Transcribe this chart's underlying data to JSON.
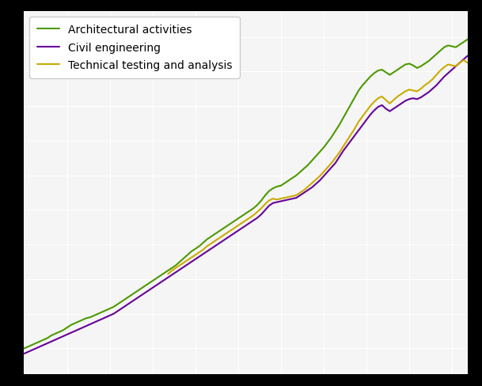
{
  "series": {
    "Architectural activities": {
      "color": "#4d9900",
      "linewidth": 1.5,
      "values": [
        100.0,
        101.0,
        102.0,
        103.0,
        104.0,
        105.0,
        106.0,
        107.5,
        108.5,
        109.5,
        110.5,
        112.0,
        113.5,
        114.5,
        115.5,
        116.5,
        117.5,
        118.0,
        119.0,
        120.0,
        121.0,
        122.0,
        123.0,
        124.0,
        125.5,
        127.0,
        128.5,
        130.0,
        131.5,
        133.0,
        134.5,
        136.0,
        137.5,
        139.0,
        140.5,
        142.0,
        143.5,
        145.0,
        146.5,
        148.0,
        150.0,
        152.0,
        154.0,
        156.0,
        157.5,
        159.0,
        161.0,
        163.0,
        164.5,
        166.0,
        167.5,
        169.0,
        170.5,
        172.0,
        173.5,
        175.0,
        176.5,
        178.0,
        179.5,
        181.0,
        183.0,
        185.5,
        188.5,
        191.0,
        192.5,
        193.5,
        194.0,
        195.5,
        197.0,
        198.5,
        200.0,
        202.0,
        204.0,
        206.0,
        208.5,
        211.0,
        213.5,
        216.0,
        219.0,
        222.0,
        225.5,
        229.0,
        233.0,
        237.0,
        241.0,
        245.0,
        249.0,
        252.0,
        254.5,
        257.0,
        259.0,
        260.5,
        261.0,
        259.5,
        258.0,
        259.5,
        261.0,
        262.5,
        264.0,
        264.5,
        263.5,
        262.0,
        263.0,
        264.5,
        266.0,
        268.0,
        270.0,
        272.0,
        274.0,
        275.0,
        274.5,
        274.0,
        275.5,
        277.0,
        278.5
      ]
    },
    "Civil engineering": {
      "color": "#660099",
      "linewidth": 1.5,
      "values": [
        97.0,
        98.0,
        99.0,
        100.0,
        101.0,
        102.0,
        103.0,
        104.0,
        105.0,
        106.0,
        107.0,
        108.0,
        109.0,
        110.0,
        111.0,
        112.0,
        113.0,
        114.0,
        115.0,
        116.0,
        117.0,
        118.0,
        119.0,
        120.0,
        121.5,
        123.0,
        124.5,
        126.0,
        127.5,
        129.0,
        130.5,
        132.0,
        133.5,
        135.0,
        136.5,
        138.0,
        139.5,
        141.0,
        142.5,
        144.0,
        145.5,
        147.0,
        148.5,
        150.0,
        151.5,
        153.0,
        154.5,
        156.0,
        157.5,
        159.0,
        160.5,
        162.0,
        163.5,
        165.0,
        166.5,
        168.0,
        169.5,
        171.0,
        172.5,
        174.0,
        175.5,
        177.5,
        180.0,
        182.5,
        184.0,
        184.5,
        185.0,
        185.5,
        186.0,
        186.5,
        187.0,
        188.5,
        190.0,
        191.5,
        193.0,
        195.0,
        197.0,
        199.5,
        202.0,
        204.5,
        207.0,
        210.5,
        214.0,
        217.0,
        220.0,
        223.0,
        226.0,
        229.0,
        232.0,
        235.0,
        237.5,
        239.5,
        240.5,
        238.5,
        237.0,
        238.5,
        240.0,
        241.5,
        243.0,
        244.0,
        244.5,
        244.0,
        245.0,
        246.5,
        248.0,
        250.0,
        252.0,
        254.5,
        257.0,
        259.0,
        261.0,
        263.0,
        265.0,
        267.0,
        269.0
      ]
    },
    "Technical testing and analysis": {
      "color": "#ccaa00",
      "linewidth": 1.5,
      "values": [
        null,
        null,
        null,
        null,
        null,
        null,
        null,
        null,
        null,
        null,
        null,
        null,
        null,
        null,
        null,
        null,
        null,
        null,
        null,
        null,
        null,
        null,
        null,
        null,
        null,
        null,
        null,
        null,
        null,
        null,
        null,
        null,
        null,
        null,
        null,
        null,
        null,
        143.0,
        145.0,
        146.5,
        148.0,
        149.5,
        151.0,
        152.5,
        154.0,
        155.5,
        157.0,
        159.0,
        160.5,
        162.0,
        163.5,
        165.0,
        166.5,
        168.0,
        169.5,
        171.0,
        172.5,
        174.0,
        175.5,
        177.0,
        179.0,
        181.0,
        183.5,
        185.5,
        186.5,
        186.0,
        186.5,
        187.0,
        187.5,
        188.0,
        188.5,
        190.0,
        191.5,
        193.5,
        195.5,
        197.5,
        199.5,
        202.0,
        204.5,
        207.0,
        210.0,
        213.0,
        216.5,
        220.0,
        223.5,
        227.0,
        231.0,
        234.0,
        237.0,
        240.0,
        242.5,
        244.5,
        245.5,
        243.5,
        241.5,
        243.5,
        245.5,
        247.0,
        248.5,
        249.5,
        249.0,
        248.5,
        250.0,
        252.0,
        253.5,
        255.5,
        258.0,
        260.5,
        262.5,
        264.0,
        263.5,
        263.0,
        265.0,
        266.5,
        265.0
      ]
    }
  },
  "n_points": 115,
  "fig_facecolor": "#000000",
  "plot_facecolor": "#f5f5f5",
  "grid_color": "#ffffff",
  "grid_linewidth": 0.8,
  "legend_fontsize": 10,
  "legend_loc": "upper left",
  "legend_facecolor": "#ffffff",
  "legend_edgecolor": "#cccccc"
}
